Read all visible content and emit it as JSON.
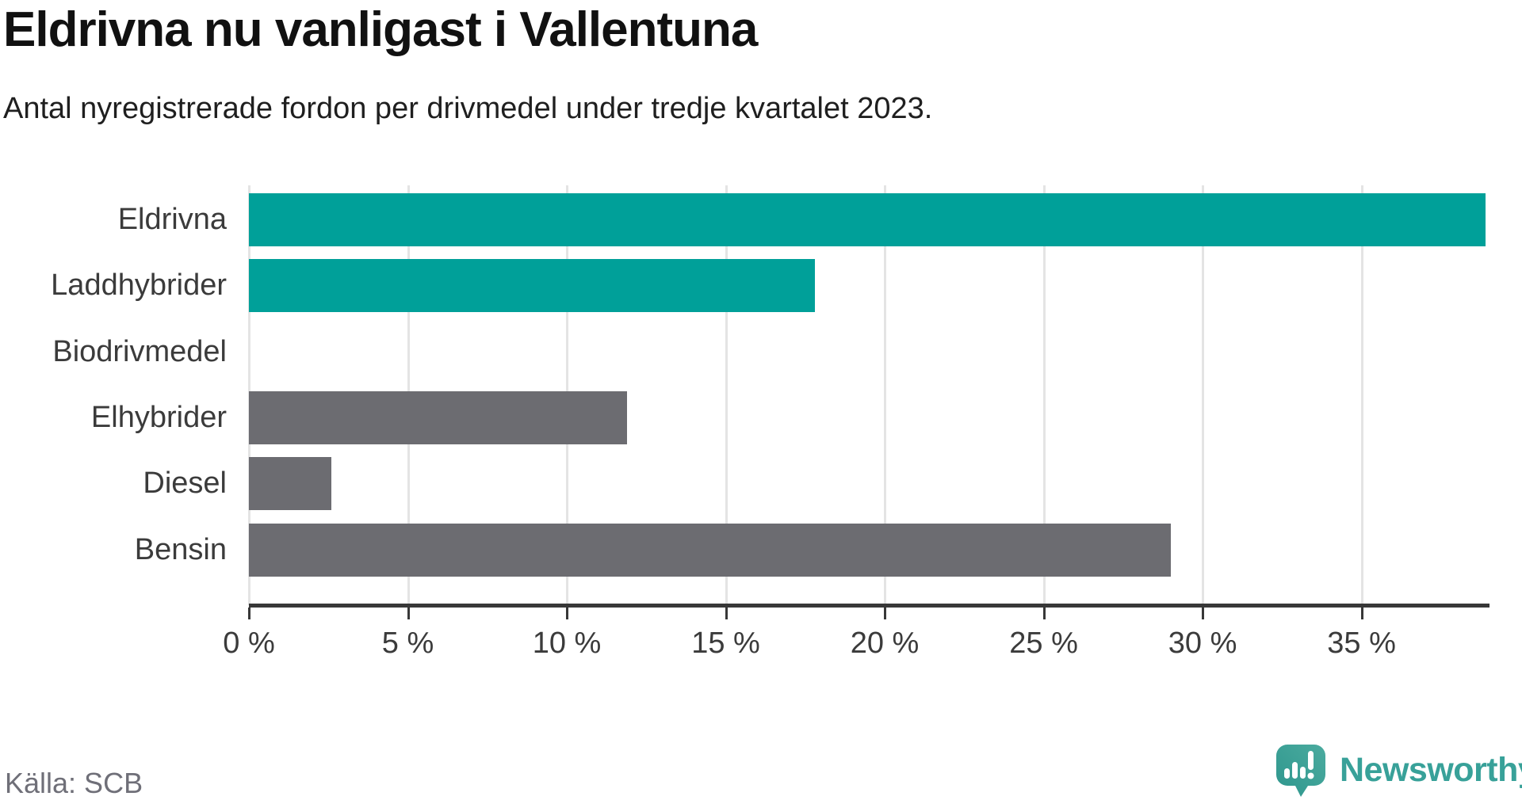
{
  "chart_data": {
    "type": "bar",
    "orientation": "horizontal",
    "title": "Eldrivna nu vanligast i Vallentuna",
    "subtitle": "Antal nyregistrerade fordon per drivmedel under tredje kvartalet 2023.",
    "source": "Källa: SCB",
    "categories": [
      "Eldrivna",
      "Laddhybrider",
      "Biodrivmedel",
      "Elhybrider",
      "Diesel",
      "Bensin"
    ],
    "values": [
      38.9,
      17.8,
      0,
      11.9,
      2.6,
      29.0
    ],
    "unit": "%",
    "bar_colors": [
      "#00a099",
      "#00a099",
      "#00a099",
      "#6c6c71",
      "#6c6c71",
      "#6c6c71"
    ],
    "highlight_color": "#00a099",
    "base_color": "#6c6c71",
    "xlim": [
      0,
      39
    ],
    "tick_values": [
      0,
      5,
      10,
      15,
      20,
      25,
      30,
      35
    ],
    "tick_labels": [
      "0 %",
      "5 %",
      "10 %",
      "15 %",
      "20 %",
      "25 %",
      "30 %",
      "35 %"
    ],
    "grid": true,
    "legend": false
  },
  "branding": {
    "name": "Newsworthy",
    "color": "#38a199"
  }
}
